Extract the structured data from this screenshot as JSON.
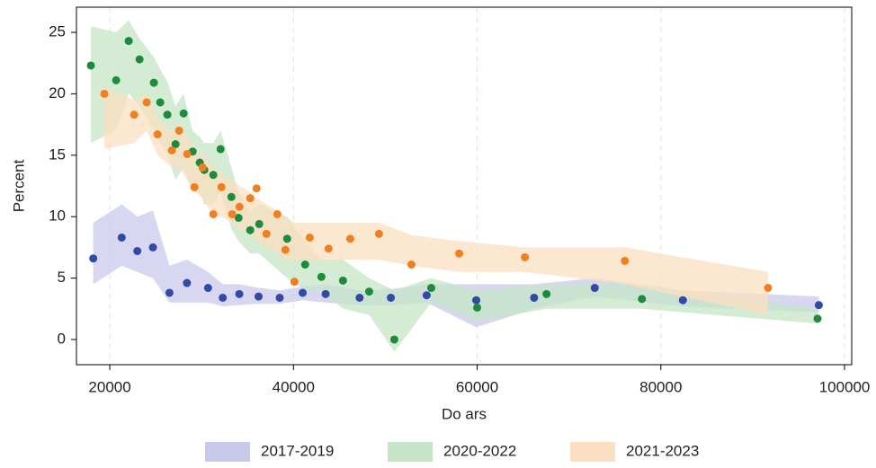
{
  "chart_data": {
    "type": "scatter",
    "x_label": "Do ars",
    "y_label": "Percent",
    "xlim": [
      16370,
      100780
    ],
    "ylim": [
      -2.05,
      27.05
    ],
    "xticks": [
      20000,
      40000,
      60000,
      80000,
      100000
    ],
    "yticks": [
      0,
      5,
      10,
      15,
      20,
      25
    ],
    "grid": "x",
    "legend": "bottom",
    "series": [
      {
        "name": "2017-2019",
        "color": "#3249a6",
        "band_color": "#c9c9ec",
        "x": [
          18200,
          21300,
          23000,
          24700,
          26500,
          28400,
          30700,
          32300,
          34100,
          36200,
          38500,
          41000,
          43500,
          47200,
          50600,
          54500,
          59900,
          66200,
          72800,
          82400,
          97200
        ],
        "values": [
          6.6,
          8.3,
          7.2,
          7.5,
          3.8,
          4.6,
          4.2,
          3.4,
          3.7,
          3.5,
          3.4,
          3.8,
          3.7,
          3.4,
          3.4,
          3.6,
          3.2,
          3.4,
          4.2,
          3.2,
          2.8
        ],
        "lower": [
          4.5,
          6,
          5.5,
          5,
          3,
          3,
          3,
          2.7,
          2.8,
          2.9,
          2.9,
          3.2,
          3,
          2.8,
          2.8,
          3,
          1,
          2.5,
          3.5,
          2.7,
          2.2
        ],
        "upper": [
          9.5,
          11,
          10,
          10.5,
          6,
          6.5,
          5.5,
          4.5,
          4.5,
          4.2,
          4,
          4.3,
          4.5,
          4,
          4.1,
          4.5,
          4.5,
          4.5,
          5,
          4,
          3.5
        ]
      },
      {
        "name": "2020-2022",
        "color": "#1e8a3c",
        "band_color": "#c6e5c6",
        "x": [
          17940,
          20690,
          22060,
          23240,
          24800,
          25490,
          26270,
          27160,
          28040,
          29020,
          29800,
          30290,
          31270,
          32060,
          33240,
          34020,
          35290,
          36270,
          39310,
          41270,
          43040,
          45390,
          48240,
          50980,
          55000,
          60000,
          67550,
          77940,
          97060
        ],
        "values": [
          22.3,
          21.1,
          24.3,
          22.8,
          20.9,
          19.3,
          18.3,
          15.9,
          18.4,
          15.3,
          14.4,
          13.8,
          13.4,
          15.5,
          11.6,
          9.9,
          8.9,
          9.4,
          8.2,
          6.1,
          5.1,
          4.8,
          3.9,
          0,
          4.2,
          2.6,
          3.7,
          3.3,
          1.7
        ],
        "lower": [
          16,
          17,
          20,
          19,
          17,
          16,
          15,
          13,
          14,
          12,
          12,
          11,
          11,
          12,
          9,
          8,
          7,
          7,
          5,
          4,
          4,
          2.5,
          2,
          -1,
          3,
          1.5,
          2.5,
          2.5,
          1.3
        ],
        "upper": [
          25.5,
          25,
          26,
          24.5,
          23,
          22,
          21,
          19,
          20,
          17,
          16.5,
          16,
          16,
          17,
          14,
          12,
          10.5,
          11,
          10,
          8,
          6.5,
          6.5,
          5,
          4,
          5,
          4,
          4.5,
          4.5,
          2.5
        ]
      },
      {
        "name": "2021-2023",
        "color": "#f07f20",
        "band_color": "#fbdfc2",
        "x": [
          19410,
          22650,
          24020,
          25200,
          26760,
          27550,
          28430,
          29220,
          30100,
          31270,
          32160,
          33330,
          34120,
          35290,
          35980,
          37060,
          38240,
          39120,
          40100,
          41770,
          43820,
          46180,
          49310,
          52840,
          58040,
          65200,
          76080,
          91670
        ],
        "values": [
          20.0,
          18.3,
          19.3,
          16.7,
          15.4,
          17.0,
          15.1,
          12.4,
          14.0,
          10.2,
          12.4,
          10.2,
          10.8,
          11.5,
          12.3,
          8.6,
          10.2,
          7.3,
          4.7,
          8.3,
          7.4,
          8.2,
          8.6,
          6.1,
          7.0,
          6.7,
          6.4,
          4.2
        ],
        "lower": [
          15.5,
          16,
          17,
          15,
          14,
          14,
          13,
          12,
          11.5,
          10,
          10,
          9.5,
          9,
          8.5,
          8,
          7.5,
          7,
          6.5,
          6.5,
          6.5,
          6.5,
          6.5,
          6.5,
          6,
          5.5,
          5.5,
          4.5,
          2
        ],
        "upper": [
          20.5,
          19.5,
          20,
          18,
          17,
          17.5,
          16.5,
          15.5,
          15,
          14,
          13.5,
          13,
          12.5,
          12,
          11.5,
          11,
          10.5,
          10,
          9.5,
          9.5,
          9.5,
          9.5,
          9.5,
          8.5,
          8,
          7.5,
          7.5,
          5.5
        ]
      }
    ]
  }
}
